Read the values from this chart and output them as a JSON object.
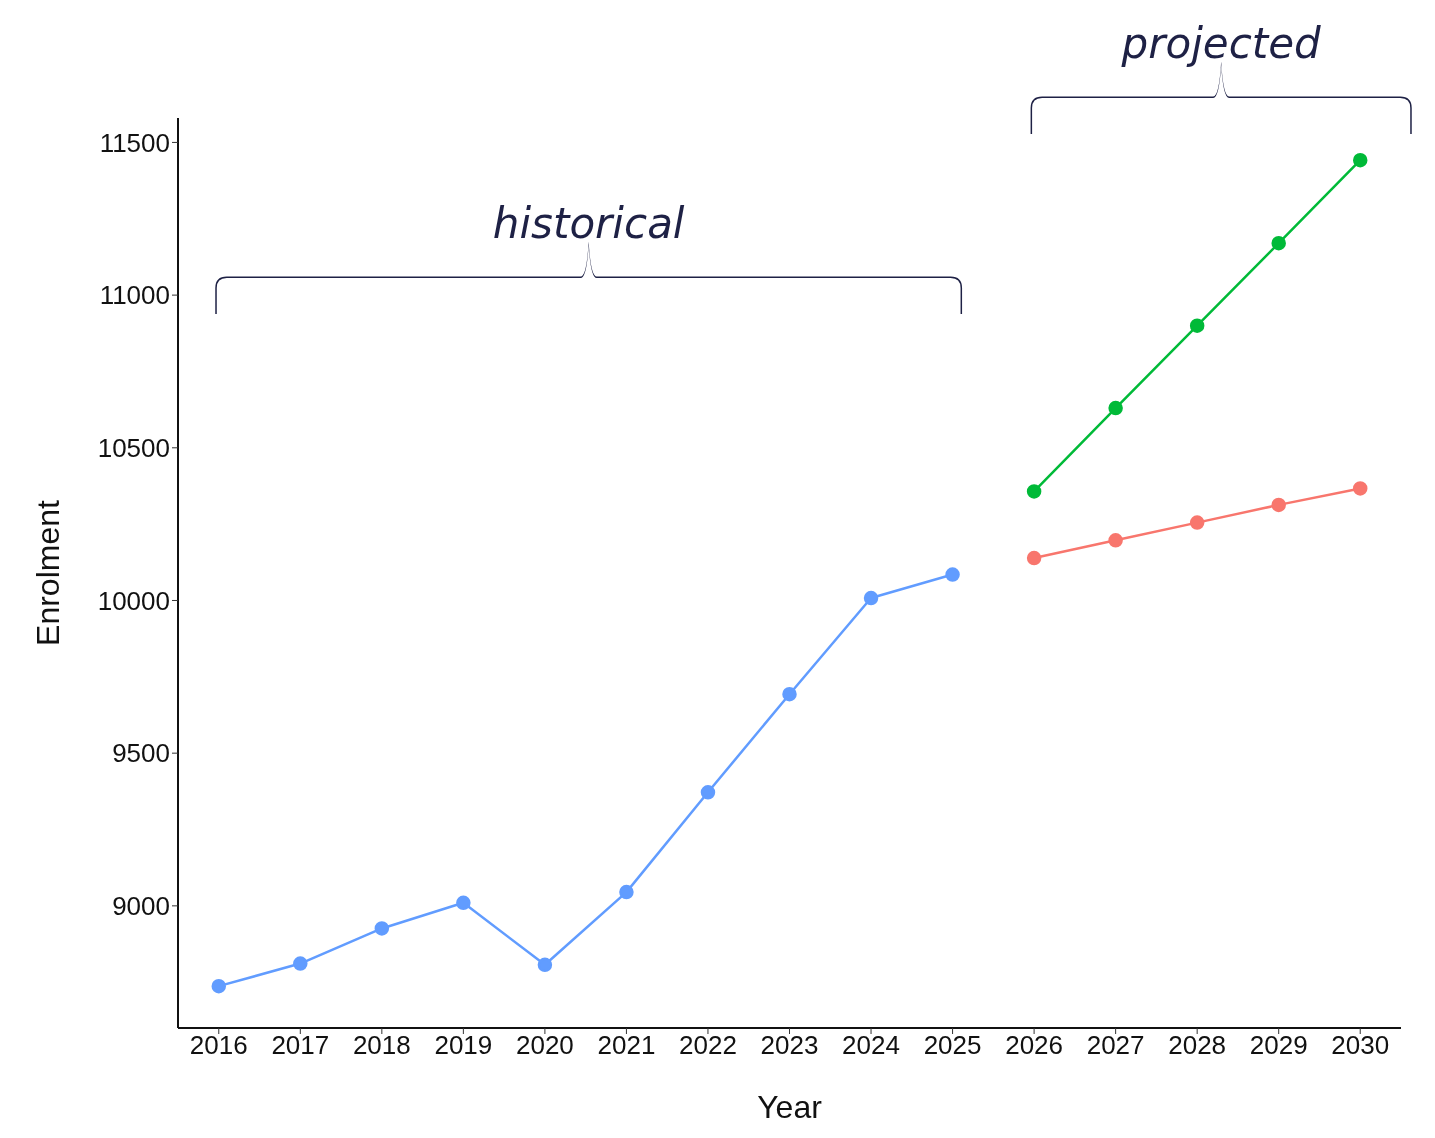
{
  "chart_data": {
    "type": "line",
    "xlabel": "Year",
    "ylabel": "Enrolment",
    "categories": [
      "2016",
      "2017",
      "2018",
      "2019",
      "2020",
      "2021",
      "2022",
      "2023",
      "2024",
      "2025",
      "2026",
      "2027",
      "2028",
      "2029",
      "2030"
    ],
    "series": [
      {
        "color": "#619cff",
        "values": [
          8737,
          8811,
          8926,
          9010,
          8807,
          9045,
          9372,
          9693,
          10008,
          10085,
          null,
          null,
          null,
          null,
          null
        ]
      },
      {
        "color": "#00ba38",
        "values": [
          null,
          null,
          null,
          null,
          null,
          null,
          null,
          null,
          null,
          null,
          10357,
          10630,
          10900,
          11170,
          11442
        ]
      },
      {
        "color": "#f8766d",
        "values": [
          null,
          null,
          null,
          null,
          null,
          null,
          null,
          null,
          null,
          null,
          10139,
          10197,
          10255,
          10313,
          10367
        ]
      }
    ],
    "ylim": [
      8600,
      11580
    ],
    "yticks": [
      9000,
      9500,
      10000,
      10500,
      11000,
      11500
    ],
    "annotations": [
      "historical",
      "projected"
    ],
    "marker": "circle",
    "line_style": "solid",
    "grid": false,
    "legend": false
  }
}
